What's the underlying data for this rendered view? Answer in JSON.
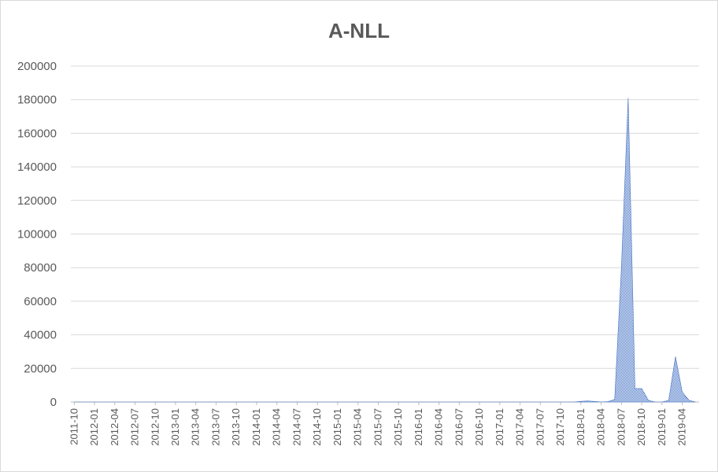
{
  "chart_data": {
    "type": "area",
    "title": "A-NLL",
    "xlabel": "",
    "ylabel": "",
    "ylim": [
      0,
      200000
    ],
    "yticks": [
      "0",
      "20000",
      "40000",
      "60000",
      "80000",
      "100000",
      "120000",
      "140000",
      "160000",
      "180000",
      "200000"
    ],
    "xtick_labels": [
      "2011-10",
      "2012-01",
      "2012-04",
      "2012-07",
      "2012-10",
      "2013-01",
      "2013-04",
      "2013-07",
      "2013-10",
      "2014-01",
      "2014-04",
      "2014-07",
      "2014-10",
      "2015-01",
      "2015-04",
      "2015-07",
      "2015-10",
      "2016-01",
      "2016-04",
      "2016-07",
      "2016-10",
      "2017-01",
      "2017-04",
      "2017-07",
      "2017-10",
      "2018-01",
      "2018-04",
      "2018-07",
      "2018-10",
      "2019-01",
      "2019-04"
    ],
    "grid": true,
    "legend": "none",
    "series_color": "#4472c4",
    "series": [
      {
        "points": [
          [
            "2011-10",
            0
          ],
          [
            "2017-12",
            0
          ],
          [
            "2018-01",
            400
          ],
          [
            "2018-02",
            600
          ],
          [
            "2018-03",
            300
          ],
          [
            "2018-04",
            0
          ],
          [
            "2018-05",
            200
          ],
          [
            "2018-06",
            1500
          ],
          [
            "2018-07",
            80000
          ],
          [
            "2018-08",
            181000
          ],
          [
            "2018-09",
            8000
          ],
          [
            "2018-10",
            8000
          ],
          [
            "2018-11",
            1000
          ],
          [
            "2018-12",
            0
          ],
          [
            "2019-01",
            0
          ],
          [
            "2019-02",
            1000
          ],
          [
            "2019-03",
            27000
          ],
          [
            "2019-04",
            6000
          ],
          [
            "2019-05",
            1000
          ],
          [
            "2019-06",
            0
          ]
        ]
      }
    ]
  }
}
